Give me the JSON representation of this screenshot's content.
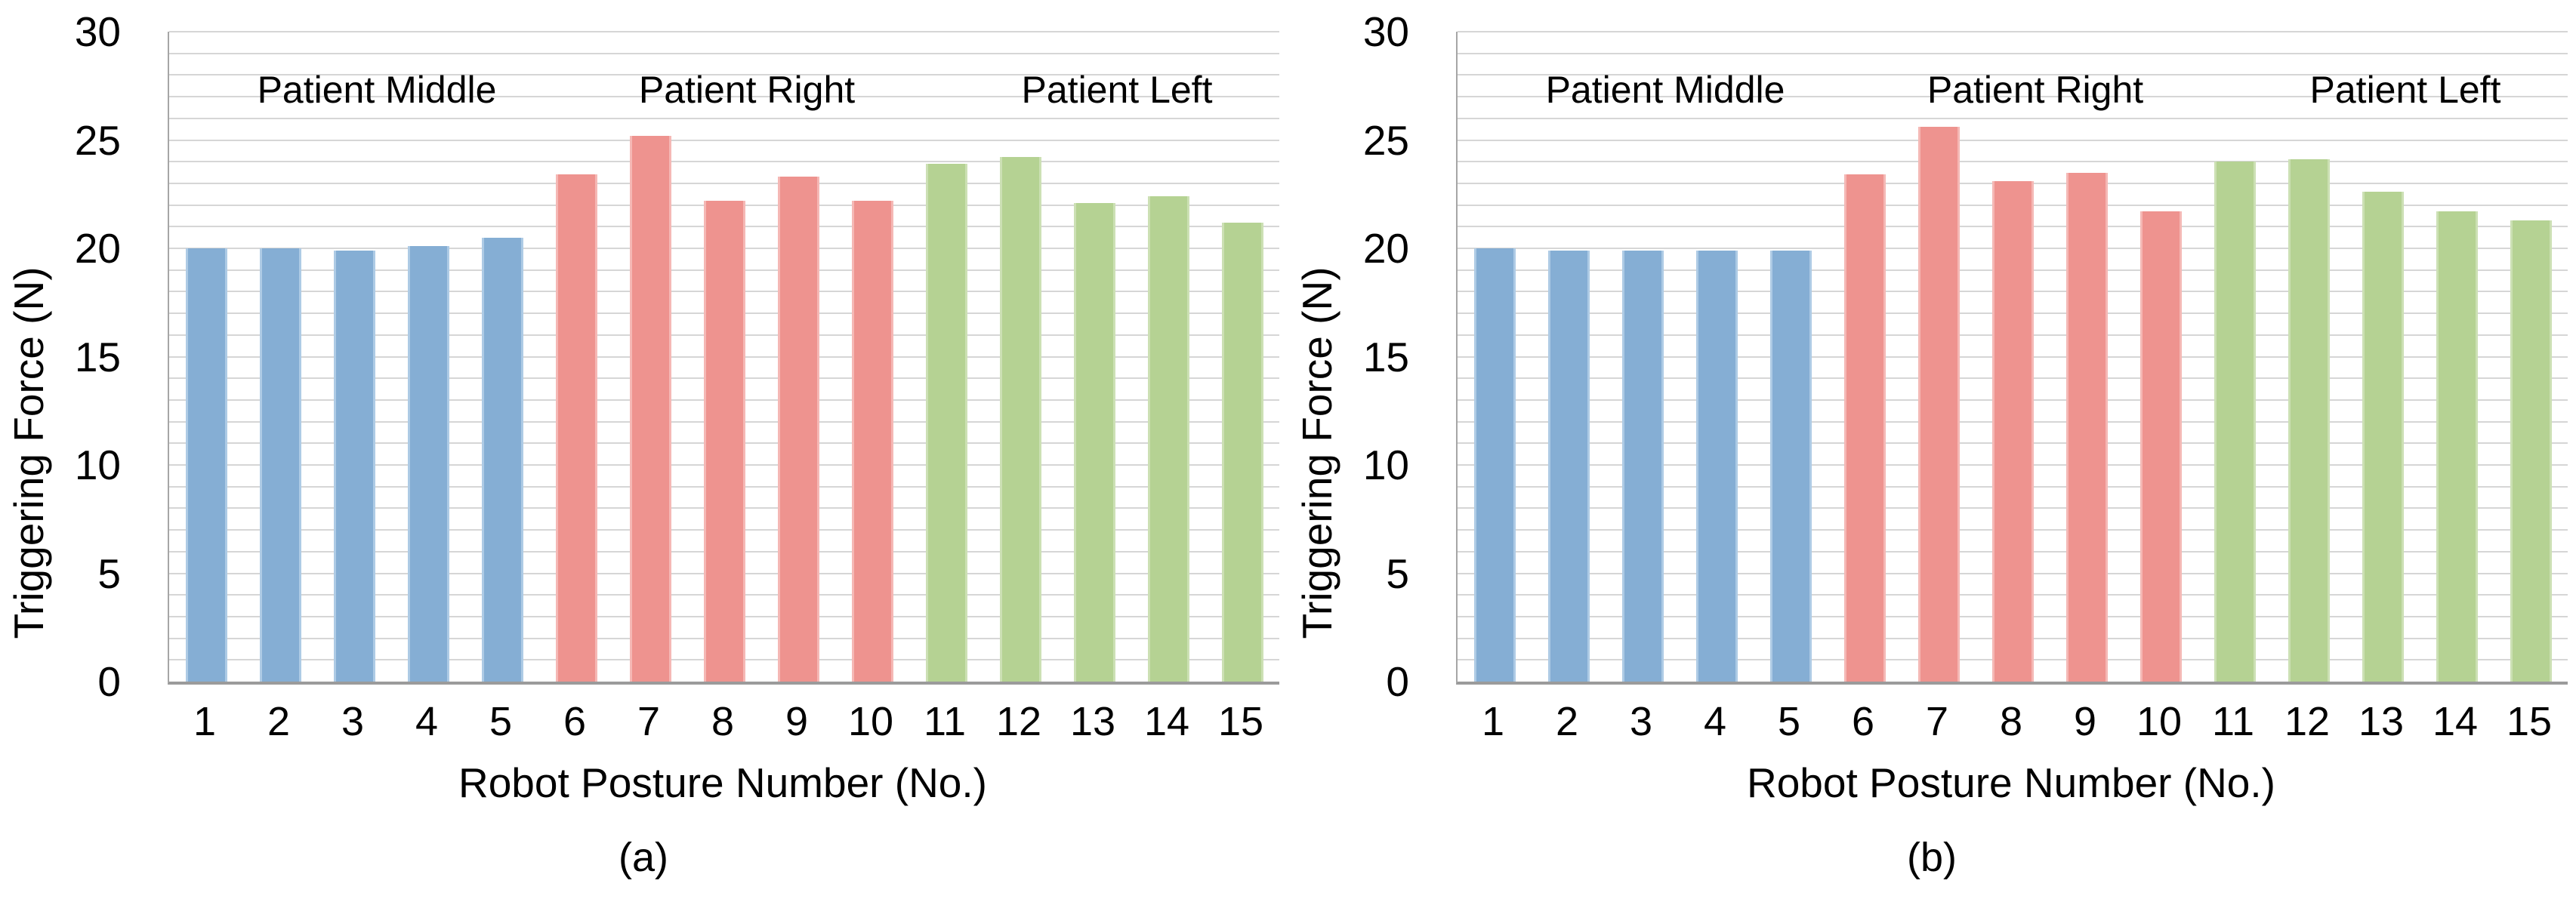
{
  "figure": {
    "y_axis_label": "Triggering Force (N)",
    "x_axis_label": "Robot Posture Number (No.)",
    "colors": {
      "patient_middle_bar": "#85aed4",
      "patient_middle_edge": "#aecbe5",
      "patient_right_bar": "#ee938f",
      "patient_right_edge": "#f5b8b5",
      "patient_left_bar": "#b5d293",
      "patient_left_edge": "#cce0b4",
      "gridline": "#d6d6d6",
      "axis_line": "#9b9b9b",
      "text": "#000000"
    }
  },
  "chart_data": [
    {
      "type": "bar",
      "caption": "(a)",
      "xlabel": "Robot Posture Number (No.)",
      "ylabel": "Triggering Force (N)",
      "ylim": [
        0,
        30
      ],
      "y_ticks": [
        0,
        5,
        10,
        15,
        20,
        25,
        30
      ],
      "gridline_step": 1,
      "grid": true,
      "legend": "none",
      "categories": [
        "1",
        "2",
        "3",
        "4",
        "5",
        "6",
        "7",
        "8",
        "9",
        "10",
        "11",
        "12",
        "13",
        "14",
        "15"
      ],
      "series": [
        {
          "name": "Patient Middle",
          "color_key": "patient_middle",
          "category_range": [
            1,
            5
          ],
          "values": [
            20.0,
            20.0,
            19.9,
            20.1,
            20.5
          ]
        },
        {
          "name": "Patient Right",
          "color_key": "patient_right",
          "category_range": [
            6,
            10
          ],
          "values": [
            23.4,
            25.2,
            22.2,
            23.3,
            22.2
          ]
        },
        {
          "name": "Patient Left",
          "color_key": "patient_left",
          "category_range": [
            11,
            15
          ],
          "values": [
            23.9,
            24.2,
            22.1,
            22.4,
            21.2
          ]
        }
      ]
    },
    {
      "type": "bar",
      "caption": "(b)",
      "xlabel": "Robot Posture Number (No.)",
      "ylabel": "Triggering Force (N)",
      "ylim": [
        0,
        30
      ],
      "y_ticks": [
        0,
        5,
        10,
        15,
        20,
        25,
        30
      ],
      "gridline_step": 1,
      "grid": true,
      "legend": "none",
      "categories": [
        "1",
        "2",
        "3",
        "4",
        "5",
        "6",
        "7",
        "8",
        "9",
        "10",
        "11",
        "12",
        "13",
        "14",
        "15"
      ],
      "series": [
        {
          "name": "Patient Middle",
          "color_key": "patient_middle",
          "category_range": [
            1,
            5
          ],
          "values": [
            20.0,
            19.9,
            19.9,
            19.9,
            19.9
          ]
        },
        {
          "name": "Patient Right",
          "color_key": "patient_right",
          "category_range": [
            6,
            10
          ],
          "values": [
            23.4,
            25.6,
            23.1,
            23.5,
            21.7
          ]
        },
        {
          "name": "Patient Left",
          "color_key": "patient_left",
          "category_range": [
            11,
            15
          ],
          "values": [
            24.0,
            24.1,
            22.6,
            21.7,
            21.3
          ]
        }
      ]
    }
  ]
}
